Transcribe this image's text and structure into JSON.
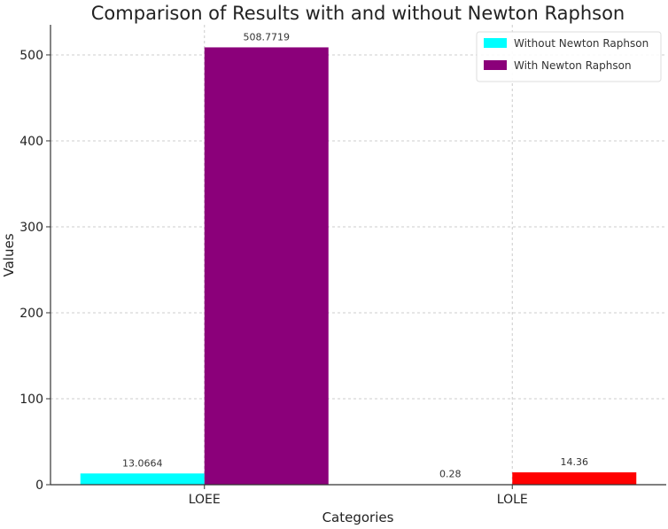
{
  "chart_data": {
    "type": "bar",
    "title": "Comparison of Results with and without Newton Raphson",
    "xlabel": "Categories",
    "ylabel": "Values",
    "categories": [
      "LOEE",
      "LOLE"
    ],
    "ylim": [
      0,
      535
    ],
    "yticks": [
      0,
      100,
      200,
      300,
      400,
      500
    ],
    "grid": true,
    "legend_position": "top-right",
    "series": [
      {
        "name": "Without Newton Raphson",
        "values": [
          13.0664,
          0.28
        ],
        "labels": [
          "13.0664",
          "0.28"
        ],
        "colors": [
          "#00ffff",
          "#00ffff"
        ]
      },
      {
        "name": "With Newton Raphson",
        "values": [
          508.7719,
          14.36
        ],
        "labels": [
          "508.7719",
          "14.36"
        ],
        "colors": [
          "#8b007a",
          "#ff0000"
        ]
      }
    ],
    "legend_colors": [
      "#00ffff",
      "#8b007a"
    ]
  }
}
